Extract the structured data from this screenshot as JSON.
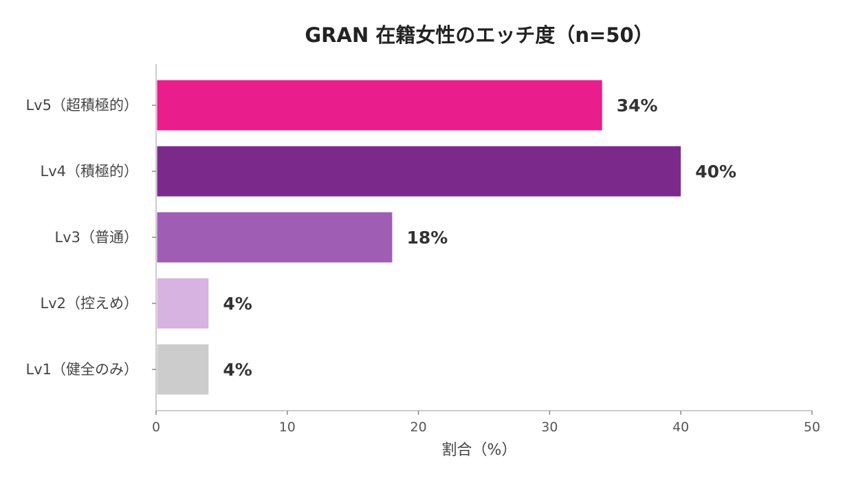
{
  "chart_data": {
    "type": "bar",
    "orientation": "horizontal",
    "title": "GRAN 在籍女性のエッチ度（n=50）",
    "xlabel": "割合（%）",
    "ylabel": "",
    "xlim": [
      0,
      50
    ],
    "xticks": [
      0,
      10,
      20,
      30,
      40,
      50
    ],
    "grid": false,
    "categories": [
      "Lv5（超積極的）",
      "Lv4（積極的）",
      "Lv3（普通）",
      "Lv2（控えめ）",
      "Lv1（健全のみ）"
    ],
    "values": [
      34,
      40,
      18,
      4,
      4
    ],
    "value_labels": [
      "34%",
      "40%",
      "18%",
      "4%",
      "4%"
    ],
    "colors": [
      "#e91e8c",
      "#7b2a8c",
      "#a05db4",
      "#d6b3e0",
      "#cccccc"
    ]
  }
}
